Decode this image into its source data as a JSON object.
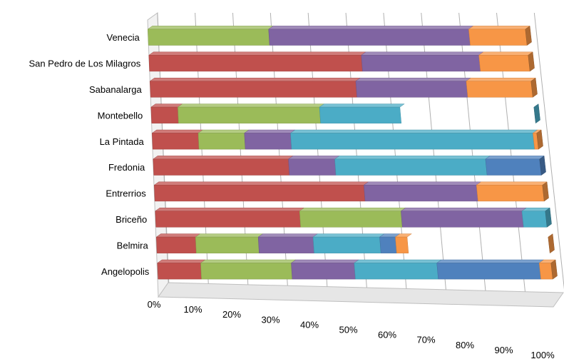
{
  "chart_data": {
    "type": "bar",
    "orientation": "horizontal",
    "stacking": "100-percent",
    "three_d": true,
    "grid": true,
    "legend": "none",
    "title": "",
    "xlabel": "",
    "ylabel": "",
    "xlim": [
      0,
      100
    ],
    "tick_labels": [
      "0%",
      "10%",
      "20%",
      "30%",
      "40%",
      "50%",
      "60%",
      "70%",
      "80%",
      "90%",
      "100%"
    ],
    "categories": [
      "Venecia",
      "San Pedro de Los Milagros",
      "Sabanalarga",
      "Montebello",
      "La Pintada",
      "Fredonia",
      "Entrerrios",
      "Briceño",
      "Belmira",
      "Angelopolis"
    ],
    "series": [
      {
        "color": "#c0504d",
        "values": [
          0,
          56,
          54,
          7,
          12,
          35,
          54,
          37,
          10,
          11
        ]
      },
      {
        "color": "#9bbb59",
        "values": [
          32,
          0,
          0,
          37,
          12,
          0,
          0,
          26,
          16,
          23
        ]
      },
      {
        "color": "#8064a2",
        "values": [
          53,
          31,
          29,
          0,
          12,
          12,
          29,
          31,
          14,
          16
        ]
      },
      {
        "color": "#4bacc6",
        "values": [
          0,
          0,
          0,
          21,
          63,
          39,
          0,
          6,
          17,
          21
        ]
      },
      {
        "color": "#4f81bd",
        "values": [
          0,
          0,
          0,
          0,
          0,
          14,
          0,
          0,
          4,
          26
        ]
      },
      {
        "color": "#f79646",
        "values": [
          15,
          13,
          17,
          0,
          1,
          0,
          17,
          0,
          3,
          3
        ]
      }
    ]
  }
}
